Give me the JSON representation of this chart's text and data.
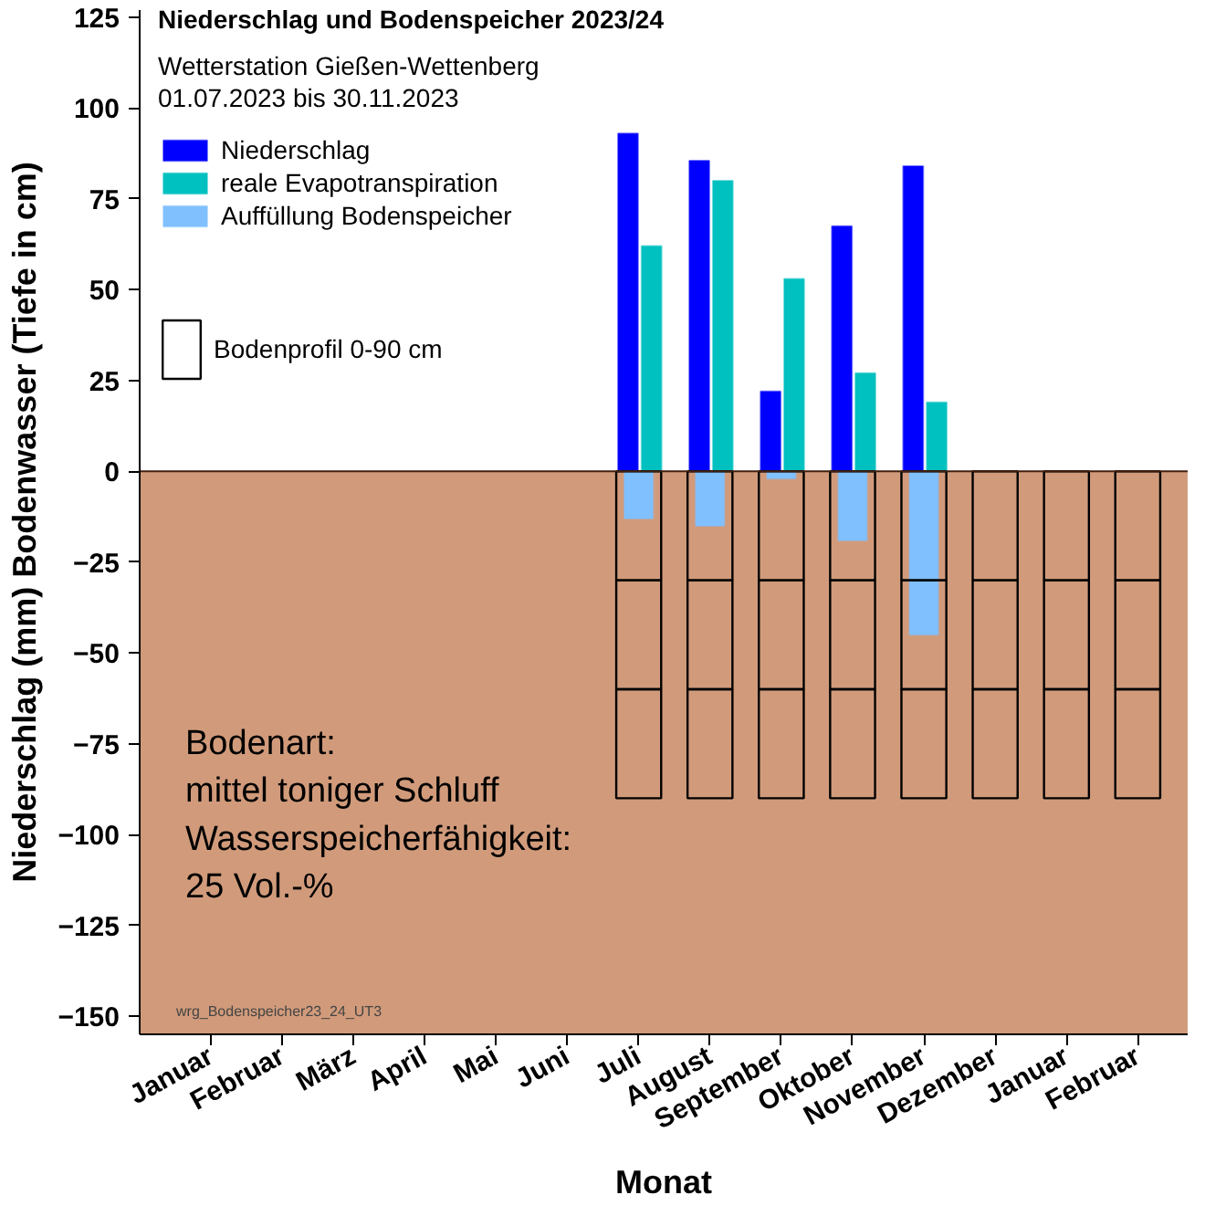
{
  "chart_data": {
    "type": "bar",
    "title": "Niederschlag und Bodenspeicher 2023/24",
    "subtitle": "Wetterstation Gießen-Wettenberg\n01.07.2023 bis 30.11.2023",
    "xlabel": "Monat",
    "ylabel": "Niederschlag (mm) Bodenwasser (Tiefe in cm)",
    "categories": [
      "Januar",
      "Februar",
      "März",
      "April",
      "Mai",
      "Juni",
      "Juli",
      "August",
      "September",
      "Oktober",
      "November",
      "Dezember",
      "Januar",
      "Februar"
    ],
    "series": [
      {
        "name": "Niederschlag",
        "color": "#0000ff",
        "values": [
          null,
          null,
          null,
          null,
          null,
          null,
          93,
          85.5,
          22,
          67.5,
          84,
          null,
          null,
          null
        ]
      },
      {
        "name": "reale Evapotranspiration",
        "color": "#00c0c0",
        "values": [
          null,
          null,
          null,
          null,
          null,
          null,
          62,
          80,
          53,
          27,
          19,
          null,
          null,
          null
        ]
      },
      {
        "name": "Auffüllung Bodenspeicher",
        "color": "#80c0ff",
        "values": [
          null,
          null,
          null,
          null,
          null,
          null,
          -13,
          -15,
          -2,
          -19,
          -45,
          null,
          null,
          null
        ]
      },
      {
        "name": "Bodenprofil 0-90 cm",
        "color": "#000000",
        "values": [
          null,
          null,
          null,
          null,
          null,
          null,
          -30,
          -30,
          -30,
          -30,
          -30,
          -30,
          -30,
          -30
        ],
        "base": [
          null,
          null,
          null,
          null,
          null,
          null,
          0,
          0,
          0,
          0,
          0,
          0,
          0,
          0
        ]
      },
      {
        "color": "#000000",
        "values": [
          null,
          null,
          null,
          null,
          null,
          null,
          -30,
          -30,
          -30,
          -30,
          -30,
          -30,
          -30,
          -30
        ],
        "base": [
          null,
          null,
          null,
          null,
          null,
          null,
          -30,
          -30,
          -30,
          -30,
          -30,
          -30,
          -30,
          -30
        ]
      },
      {
        "color": "#000000",
        "values": [
          null,
          null,
          null,
          null,
          null,
          null,
          -30,
          -30,
          -30,
          -30,
          -30,
          -30,
          -30,
          -30
        ],
        "base": [
          null,
          null,
          null,
          null,
          null,
          null,
          -60,
          -60,
          -60,
          -60,
          -60,
          -60,
          -60,
          -60
        ]
      }
    ],
    "ylim": [
      -155,
      127
    ],
    "yticks": [
      -150,
      -125,
      -100,
      -75,
      -50,
      -25,
      0,
      25,
      50,
      75,
      100,
      125
    ],
    "bands": [
      {
        "axis": "y",
        "from": 0,
        "to": -155,
        "color": "#d19b7b"
      }
    ],
    "annotations": [
      "Bodenart:\nmittel toniger Schluff\nWasserspeicherfähigkeit:\n25 Vol.-%",
      "wrg_Bodenspeicher23_24_UT3"
    ],
    "grid": false,
    "legend": "top left"
  }
}
